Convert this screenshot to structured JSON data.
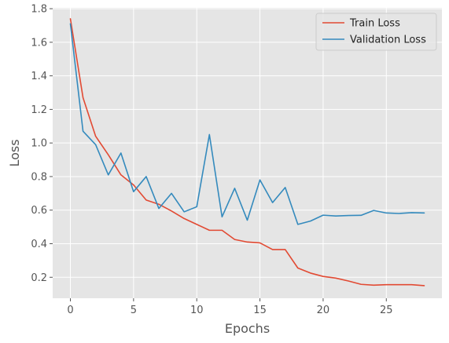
{
  "chart_data": {
    "type": "line",
    "title": "",
    "xlabel": "Epochs",
    "ylabel": "Loss",
    "xlim": [
      -1.4,
      29.4
    ],
    "ylim": [
      0.075,
      1.805
    ],
    "xticks": [
      0,
      5,
      10,
      15,
      20,
      25
    ],
    "yticks": [
      0.2,
      0.4,
      0.6,
      0.8,
      1.0,
      1.2,
      1.4,
      1.6,
      1.8
    ],
    "ytick_labels": [
      "0.2",
      "0.4",
      "0.6",
      "0.8",
      "1.0",
      "1.2",
      "1.4",
      "1.6",
      "1.8"
    ],
    "grid": true,
    "legend_position": "top-right",
    "x": [
      0,
      1,
      2,
      3,
      4,
      5,
      6,
      7,
      8,
      9,
      10,
      11,
      12,
      13,
      14,
      15,
      16,
      17,
      18,
      19,
      20,
      21,
      22,
      23,
      24,
      25,
      26,
      27,
      28
    ],
    "series": [
      {
        "name": "Train Loss",
        "color": "#E24A33",
        "values": [
          1.74,
          1.27,
          1.04,
          0.93,
          0.81,
          0.75,
          0.66,
          0.635,
          0.595,
          0.55,
          0.515,
          0.48,
          0.48,
          0.425,
          0.41,
          0.405,
          0.365,
          0.365,
          0.255,
          0.225,
          0.205,
          0.195,
          0.178,
          0.158,
          0.153,
          0.156,
          0.156,
          0.156,
          0.15
        ]
      },
      {
        "name": "Validation Loss",
        "color": "#348ABD",
        "values": [
          1.71,
          1.07,
          0.99,
          0.81,
          0.94,
          0.71,
          0.8,
          0.61,
          0.7,
          0.59,
          0.62,
          1.05,
          0.56,
          0.73,
          0.54,
          0.78,
          0.645,
          0.735,
          0.515,
          0.535,
          0.57,
          0.565,
          0.568,
          0.569,
          0.598,
          0.583,
          0.58,
          0.585,
          0.583
        ]
      }
    ]
  }
}
